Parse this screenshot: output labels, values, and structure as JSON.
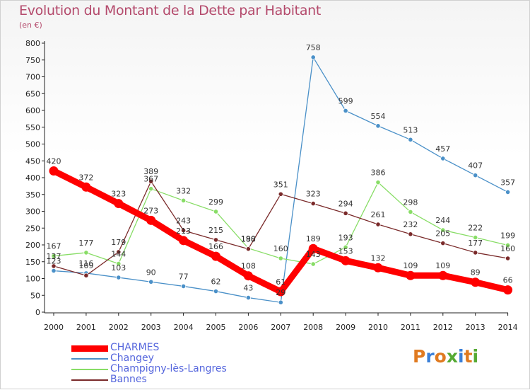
{
  "title": "Evolution du Montant de la Dette par Habitant",
  "subtitle": "(en €)",
  "logo_text": "Proxiti",
  "chart_data": {
    "type": "line",
    "title": "Evolution du Montant de la Dette par Habitant",
    "ylabel": "(en €)",
    "xlabel": "",
    "ylim": [
      0,
      800
    ],
    "yticks": [
      0,
      50,
      100,
      150,
      200,
      250,
      300,
      350,
      400,
      450,
      500,
      550,
      600,
      650,
      700,
      750,
      800
    ],
    "grid": false,
    "legend_position": "bottom-left",
    "categories": [
      "2000",
      "2001",
      "2002",
      "2003",
      "2004",
      "2005",
      "2006",
      "2007",
      "2008",
      "2009",
      "2010",
      "2011",
      "2012",
      "2013",
      "2014"
    ],
    "series": [
      {
        "name": "Changey",
        "color": "#4a90c8",
        "values": [
          123,
          116,
          103,
          90,
          77,
          62,
          43,
          29,
          758,
          599,
          554,
          513,
          457,
          407,
          357
        ]
      },
      {
        "name": "Champigny-lès-Langres",
        "color": "#88dd66",
        "values": [
          167,
          177,
          144,
          367,
          332,
          299,
          190,
          160,
          143,
          193,
          386,
          298,
          244,
          222,
          199
        ]
      },
      {
        "name": "Bannes",
        "color": "#7a2a2a",
        "values": [
          137,
          109,
          179,
          389,
          243,
          215,
          188,
          351,
          323,
          294,
          261,
          232,
          205,
          177,
          160
        ]
      },
      {
        "name": "CHARMES",
        "color": "#ff0000",
        "values": [
          420,
          372,
          323,
          273,
          213,
          166,
          108,
          61,
          189,
          153,
          132,
          109,
          109,
          89,
          66
        ]
      }
    ]
  }
}
